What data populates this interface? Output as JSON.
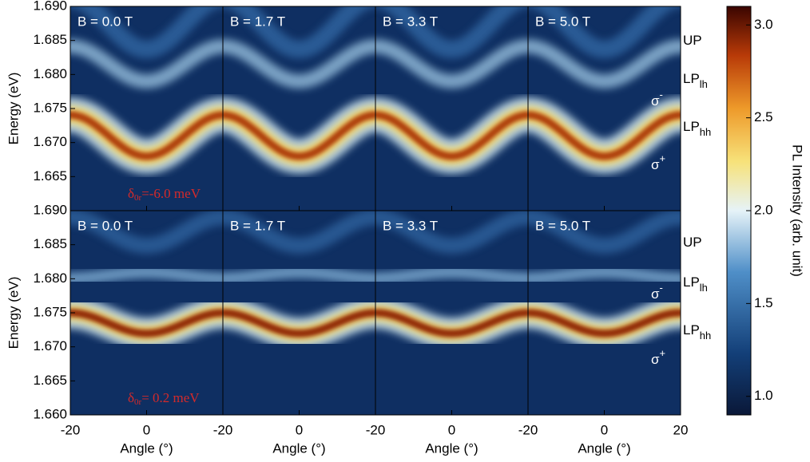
{
  "chart_data": {
    "type": "heatmap",
    "x_label": "Angle (°)",
    "y_label": "Energy (eV)",
    "xlim": [
      -20,
      20
    ],
    "xticks": [
      -20,
      0,
      20
    ],
    "rows": [
      {
        "ylim": [
          1.66,
          1.69
        ],
        "yticks": [
          {
            "value": 1.665,
            "label": "1.665"
          },
          {
            "value": 1.67,
            "label": "1.670"
          },
          {
            "value": 1.675,
            "label": "1.675"
          },
          {
            "value": 1.68,
            "label": "1.680"
          },
          {
            "value": 1.685,
            "label": "1.685"
          },
          {
            "value": 1.69,
            "label": "1.690"
          }
        ],
        "panels": [
          {
            "title": "B = 0.0 T"
          },
          {
            "title": "B = 1.7 T"
          },
          {
            "title": "B = 3.3 T"
          },
          {
            "title": "B = 5.0 T"
          }
        ],
        "detuning": {
          "symbol": "δ",
          "subscript": "0r",
          "text": "=-6.0 meV"
        },
        "labels": [
          {
            "text": "UP"
          },
          {
            "text": "LP",
            "sub": "lh"
          },
          {
            "text": "σ",
            "sup": "-"
          },
          {
            "text": "LP",
            "sub": "hh"
          },
          {
            "text": "σ",
            "sup": "+"
          }
        ]
      },
      {
        "ylim": [
          1.66,
          1.69
        ],
        "yticks": [
          {
            "value": 1.66,
            "label": "1.660"
          },
          {
            "value": 1.665,
            "label": "1.665"
          },
          {
            "value": 1.67,
            "label": "1.670"
          },
          {
            "value": 1.675,
            "label": "1.675"
          },
          {
            "value": 1.68,
            "label": "1.680"
          },
          {
            "value": 1.685,
            "label": "1.685"
          },
          {
            "value": 1.69,
            "label": "1.690"
          }
        ],
        "panels": [
          {
            "title": "B = 0.0 T"
          },
          {
            "title": "B = 1.7 T"
          },
          {
            "title": "B = 3.3 T"
          },
          {
            "title": "B = 5.0 T"
          }
        ],
        "detuning": {
          "symbol": "δ",
          "subscript": "0r",
          "text": "= 0.2 meV"
        },
        "labels": [
          {
            "text": "UP"
          },
          {
            "text": "LP",
            "sub": "lh"
          },
          {
            "text": "σ",
            "sup": "-"
          },
          {
            "text": "LP",
            "sub": "hh"
          },
          {
            "text": "σ",
            "sup": "+"
          }
        ]
      }
    ],
    "colorbar": {
      "label": "PL Intensity (arb. unit)",
      "clim": [
        0.9,
        3.1
      ],
      "ticks": [
        {
          "value": 1,
          "label": "1.0"
        },
        {
          "value": 1.5,
          "label": "1.5"
        },
        {
          "value": 2,
          "label": "2.0"
        },
        {
          "value": 2.5,
          "label": "2.5"
        },
        {
          "value": 3,
          "label": "3.0"
        }
      ]
    }
  }
}
